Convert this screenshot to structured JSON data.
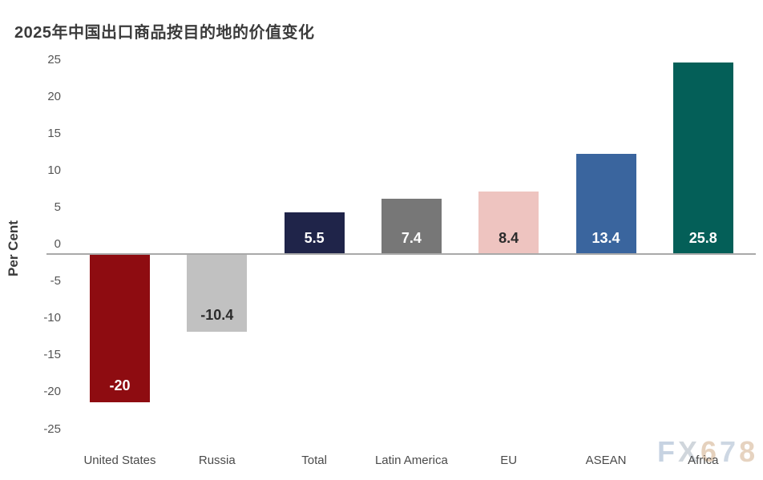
{
  "title": "2025年中国出口商品按目的地的价值变化",
  "watermark": {
    "text": "FX678",
    "letters": [
      {
        "ch": "F",
        "color": "#c2cfdf"
      },
      {
        "ch": "X",
        "color": "#ccd2d9"
      },
      {
        "ch": "6",
        "color": "#e3cdb6"
      },
      {
        "ch": "7",
        "color": "#c8d3e0"
      },
      {
        "ch": "8",
        "color": "#e4cfba"
      }
    ]
  },
  "chart_data": {
    "type": "bar",
    "title": "2025年中国出口商品按目的地的价值变化",
    "xlabel": "",
    "ylabel": "Per Cent",
    "ylim": [
      -25,
      25
    ],
    "yticks": [
      25,
      20,
      15,
      10,
      5,
      0,
      -5,
      -10,
      -15,
      -20,
      -25
    ],
    "grid": false,
    "legend": "none",
    "categories": [
      "United States",
      "Russia",
      "Total",
      "Latin America",
      "EU",
      "ASEAN",
      "Africa"
    ],
    "values": [
      -20,
      -10.4,
      5.5,
      7.4,
      8.4,
      13.4,
      25.8
    ],
    "value_labels": [
      "-20",
      "-10.4",
      "5.5",
      "7.4",
      "8.4",
      "13.4",
      "25.8"
    ],
    "bar_colors": [
      "#8e0c11",
      "#c1c1c1",
      "#1f2449",
      "#777777",
      "#eec4c0",
      "#3a659e",
      "#045f58"
    ],
    "value_label_colors": [
      "#ffffff",
      "#2b2b2b",
      "#ffffff",
      "#ffffff",
      "#2b2b2b",
      "#ffffff",
      "#ffffff"
    ]
  }
}
